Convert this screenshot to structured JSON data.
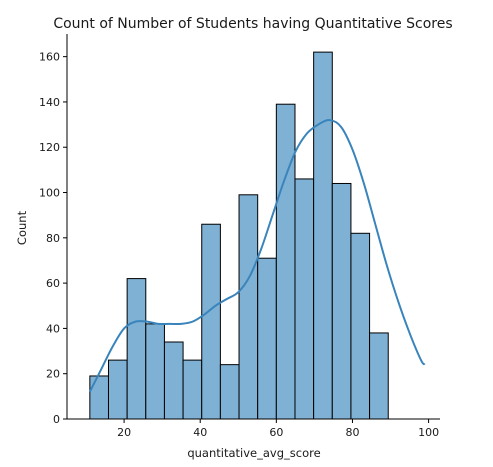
{
  "chart_data": {
    "type": "bar",
    "title": "Count of Number of Students having Quantitative Scores",
    "xlabel": "quantitative_avg_score",
    "ylabel": "Count",
    "xlim": [
      5,
      103
    ],
    "ylim": [
      0,
      170
    ],
    "xticks": [
      20,
      40,
      60,
      80,
      100
    ],
    "yticks": [
      0,
      20,
      40,
      60,
      80,
      100,
      120,
      140,
      160
    ],
    "grid": false,
    "bar_color": "#7fb1d5",
    "kde_color": "#3a84bc",
    "bins": [
      {
        "x0": 11.0,
        "x1": 15.9,
        "count": 19
      },
      {
        "x0": 15.9,
        "x1": 20.8,
        "count": 26
      },
      {
        "x0": 20.8,
        "x1": 25.7,
        "count": 62
      },
      {
        "x0": 25.7,
        "x1": 30.6,
        "count": 42
      },
      {
        "x0": 30.6,
        "x1": 35.5,
        "count": 34
      },
      {
        "x0": 35.5,
        "x1": 40.4,
        "count": 26
      },
      {
        "x0": 40.4,
        "x1": 45.3,
        "count": 86
      },
      {
        "x0": 45.3,
        "x1": 50.2,
        "count": 24
      },
      {
        "x0": 50.2,
        "x1": 55.1,
        "count": 99
      },
      {
        "x0": 55.1,
        "x1": 60.0,
        "count": 71
      },
      {
        "x0": 60.0,
        "x1": 64.9,
        "count": 139
      },
      {
        "x0": 64.9,
        "x1": 69.8,
        "count": 106
      },
      {
        "x0": 69.8,
        "x1": 74.7,
        "count": 162
      },
      {
        "x0": 74.7,
        "x1": 79.6,
        "count": 104
      },
      {
        "x0": 79.6,
        "x1": 84.5,
        "count": 82
      },
      {
        "x0": 84.5,
        "x1": 89.4,
        "count": 38
      }
    ],
    "kde": {
      "x": [
        11,
        14,
        17,
        20,
        23,
        26,
        29,
        32,
        35,
        38,
        41,
        44,
        47,
        50,
        53,
        56,
        59,
        62,
        65,
        68,
        71,
        74,
        77,
        80,
        83,
        86,
        89,
        92,
        95,
        98,
        99
      ],
      "y": [
        12,
        22,
        32,
        40,
        43,
        43,
        42,
        42,
        42,
        43,
        46,
        50,
        53,
        56,
        63,
        75,
        90,
        105,
        118,
        126,
        130,
        132,
        129,
        119,
        104,
        86,
        68,
        52,
        38,
        26,
        24
      ]
    }
  }
}
